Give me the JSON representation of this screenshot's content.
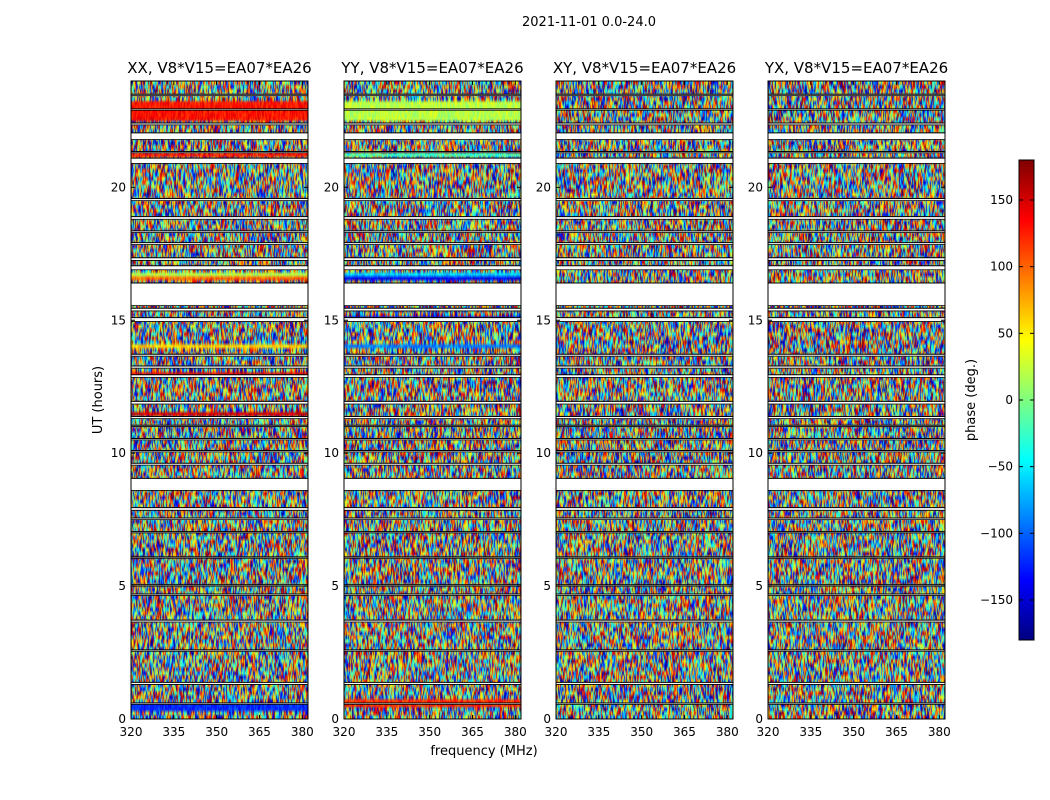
{
  "chart_data": {
    "type": "heatmap",
    "suptitle": "2021-11-01 0.0-24.0",
    "xlabel": "frequency (MHz)",
    "ylabel": "UT (hours)",
    "xlim": [
      320,
      382
    ],
    "ylim": [
      0,
      24
    ],
    "xticks": [
      320,
      335,
      350,
      365,
      380
    ],
    "yticks": [
      0,
      5,
      10,
      15,
      20
    ],
    "colorbar": {
      "label": "phase (deg.)",
      "range": [
        -180,
        180
      ],
      "ticks": [
        150,
        100,
        50,
        0,
        -50,
        -100,
        -150
      ],
      "tick_labels": [
        "150",
        "100",
        "50",
        "0",
        "−50",
        "−100",
        "−150"
      ],
      "colormap": "jet",
      "colors": [
        "#00007f",
        "#0000ff",
        "#007fff",
        "#00ffff",
        "#7fff7f",
        "#ffff00",
        "#ff7f00",
        "#ff0000",
        "#7f0000"
      ]
    },
    "flagged_ut_gaps_hours": [
      [
        0.55,
        0.6
      ],
      [
        1.3,
        1.38
      ],
      [
        2.55,
        2.6
      ],
      [
        3.65,
        3.72
      ],
      [
        4.65,
        4.7
      ],
      [
        5.0,
        5.05
      ],
      [
        6.05,
        6.1
      ],
      [
        7.0,
        7.05
      ],
      [
        7.5,
        7.56
      ],
      [
        7.85,
        7.95
      ],
      [
        8.6,
        9.05
      ],
      [
        9.55,
        9.62
      ],
      [
        10.05,
        10.1
      ],
      [
        10.5,
        10.55
      ],
      [
        11.0,
        11.05
      ],
      [
        11.3,
        11.38
      ],
      [
        11.85,
        11.95
      ],
      [
        12.85,
        12.95
      ],
      [
        13.2,
        13.28
      ],
      [
        13.65,
        13.72
      ],
      [
        14.95,
        15.1
      ],
      [
        15.35,
        15.45
      ],
      [
        15.55,
        16.4
      ],
      [
        16.9,
        17.05
      ],
      [
        17.25,
        17.35
      ],
      [
        17.85,
        17.92
      ],
      [
        18.3,
        18.36
      ],
      [
        18.8,
        18.9
      ],
      [
        19.5,
        19.58
      ],
      [
        20.9,
        21.1
      ],
      [
        21.3,
        21.35
      ],
      [
        21.8,
        22.05
      ],
      [
        22.35,
        22.42
      ],
      [
        22.9,
        22.95
      ],
      [
        23.45,
        23.5
      ]
    ],
    "panels": [
      {
        "title": "XX, V8*V15=EA07*EA26",
        "coherent_bands": [
          {
            "ut": [
              0.3,
              0.55
            ],
            "phase": -120
          },
          {
            "ut": [
              5.35,
              5.45
            ],
            "phase": 170
          },
          {
            "ut": [
              8.7,
              8.85
            ],
            "phase": 150
          },
          {
            "ut": [
              11.45,
              11.55
            ],
            "phase": 150
          },
          {
            "ut": [
              12.95,
              13.05
            ],
            "phase": 140
          },
          {
            "ut": [
              13.95,
              14.05
            ],
            "phase": 60
          },
          {
            "ut": [
              16.45,
              16.6
            ],
            "phase": 100
          },
          {
            "ut": [
              16.6,
              16.75
            ],
            "phase": 20
          },
          {
            "ut": [
              21.1,
              21.3
            ],
            "phase": 130
          },
          {
            "ut": [
              22.45,
              23.3
            ],
            "phase": 130
          }
        ]
      },
      {
        "title": "YY, V8*V15=EA07*EA26",
        "coherent_bands": [
          {
            "ut": [
              0.5,
              0.7
            ],
            "phase": 120
          },
          {
            "ut": [
              8.7,
              8.85
            ],
            "phase": 50
          },
          {
            "ut": [
              13.95,
              14.05
            ],
            "phase": -90
          },
          {
            "ut": [
              15.0,
              15.15
            ],
            "phase": -150
          },
          {
            "ut": [
              16.45,
              16.6
            ],
            "phase": -140
          },
          {
            "ut": [
              16.6,
              16.75
            ],
            "phase": -60
          },
          {
            "ut": [
              21.1,
              21.3
            ],
            "phase": -20
          },
          {
            "ut": [
              22.45,
              23.3
            ],
            "phase": 20
          }
        ]
      },
      {
        "title": "XY, V8*V15=EA07*EA26",
        "coherent_bands": []
      },
      {
        "title": "YX, V8*V15=EA07*EA26",
        "coherent_bands": [
          {
            "ut": [
              14.95,
              15.05
            ],
            "phase": 150
          }
        ]
      }
    ]
  }
}
